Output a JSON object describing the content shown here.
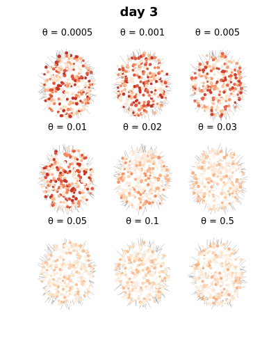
{
  "figure": {
    "title": "day 3"
  },
  "panels": [
    {
      "label": "θ = 0.0005",
      "palette": [
        "#fde0c5",
        "#fbb98f",
        "#f4875f",
        "#e2563e",
        "#c43427",
        "#fbead9"
      ]
    },
    {
      "label": "θ = 0.001",
      "palette": [
        "#fde0c5",
        "#fbb98f",
        "#f4875f",
        "#e2563e",
        "#c43427",
        "#fbead9"
      ]
    },
    {
      "label": "θ = 0.005",
      "palette": [
        "#fde0c5",
        "#fbc39e",
        "#f69a6e",
        "#e8654a",
        "#cf4230",
        "#fbead9"
      ]
    },
    {
      "label": "θ = 0.01",
      "palette": [
        "#fde0c5",
        "#fbb98f",
        "#f4875f",
        "#e2563e",
        "#c43427",
        "#fbead9"
      ]
    },
    {
      "label": "θ = 0.02",
      "palette": [
        "#fde8d6",
        "#fcd2b1",
        "#fab488",
        "#f3936a",
        "#fbead9",
        "#fdf1e4"
      ]
    },
    {
      "label": "θ = 0.03",
      "palette": [
        "#fdf0e2",
        "#fde2c8",
        "#fcceaa",
        "#f9b487",
        "#fbead9",
        "#fdf6ee"
      ]
    },
    {
      "label": "θ = 0.05",
      "palette": [
        "#fdf0e2",
        "#fde2c8",
        "#fcd5b4",
        "#f9be93",
        "#fbead9",
        "#fdf6ee"
      ]
    },
    {
      "label": "θ = 0.1",
      "palette": [
        "#fdf0e2",
        "#fde2c8",
        "#fcd5b4",
        "#f9be93",
        "#fbead9",
        "#fdf6ee"
      ]
    },
    {
      "label": "θ = 0.5",
      "palette": [
        "#fdf0e2",
        "#fde2c8",
        "#fcd2b0",
        "#f8b287",
        "#fbead9",
        "#fdf6ee"
      ]
    }
  ]
}
